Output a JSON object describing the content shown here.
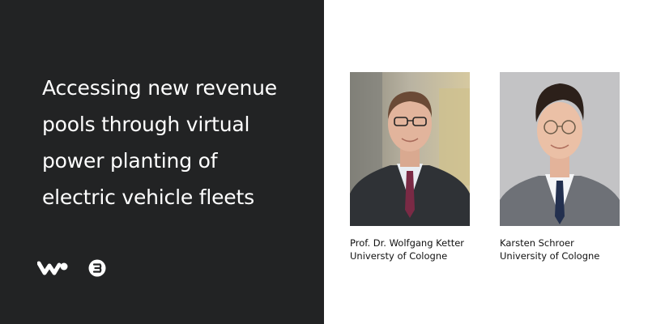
{
  "headline": {
    "lines": [
      "Accessing new revenue",
      "pools through virtual",
      "power planting of",
      "electric vehicle fleets"
    ]
  },
  "icons": {
    "brand_w": "w-logo-icon",
    "brand_circle": "circle-logo-icon"
  },
  "speakers": [
    {
      "name": "Prof. Dr. Wolfgang Ketter",
      "affiliation": "Universty of Cologne"
    },
    {
      "name": "Karsten Schroer",
      "affiliation": "University of Cologne"
    }
  ],
  "colors": {
    "dark_panel": "#222324",
    "text_light": "#ffffff",
    "text_dark": "#111111"
  }
}
